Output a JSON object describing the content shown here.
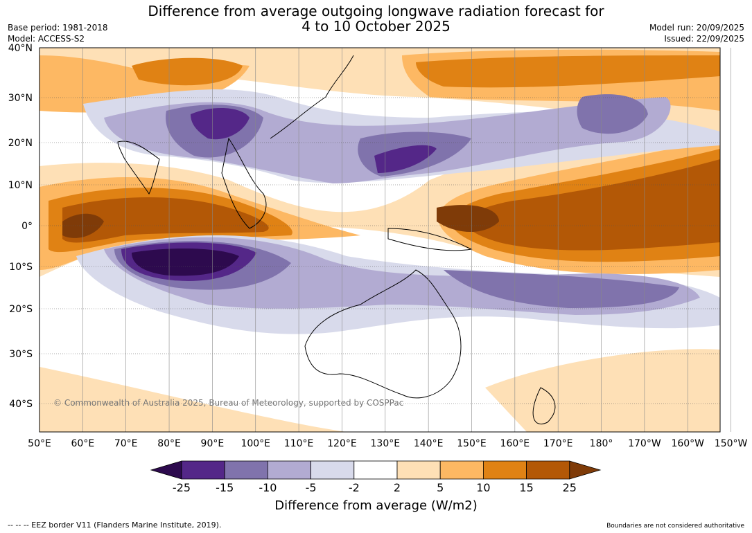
{
  "title": {
    "line1": "Difference from average outgoing longwave radiation forecast for",
    "line2": "4 to 10 October 2025"
  },
  "meta_left": {
    "base_period": "Base period: 1981-2018",
    "model": "Model: ACCESS-S2"
  },
  "meta_right": {
    "model_run": "Model run: 20/09/2025",
    "issued": "Issued: 22/09/2025"
  },
  "map": {
    "lat_labels": [
      "40°N",
      "30°N",
      "20°N",
      "10°N",
      "0°",
      "10°S",
      "20°S",
      "30°S",
      "40°S"
    ],
    "lon_labels": [
      "50°E",
      "60°E",
      "70°E",
      "80°E",
      "90°E",
      "100°E",
      "110°E",
      "120°E",
      "130°E",
      "140°E",
      "150°E",
      "160°E",
      "170°E",
      "180°",
      "170°W",
      "160°W",
      "150°W"
    ],
    "copyright": "© Commonwealth of Australia 2025, Bureau of Meteorology, supported by COSPPac"
  },
  "colorbar": {
    "ticks": [
      "-25",
      "-15",
      "-10",
      "-5",
      "-2",
      "2",
      "5",
      "10",
      "15",
      "25"
    ],
    "colors": {
      "lt_minus25": "#2d0a4e",
      "m25_m15": "#542788",
      "m15_m10": "#8073ac",
      "m10_m5": "#b2abd2",
      "m5_m2": "#d8daeb",
      "m2_2": "#ffffff",
      "p2_5": "#fee0b6",
      "p5_10": "#fdb863",
      "p10_15": "#e08214",
      "p15_25": "#b35806",
      "gt25": "#7f3b08"
    },
    "label": "Difference from average (W/m2)"
  },
  "footer": {
    "left": "--  --  -- EEZ border V11 (Flanders Marine Institute, 2019).",
    "right": "Boundaries are not considered authoritative"
  }
}
